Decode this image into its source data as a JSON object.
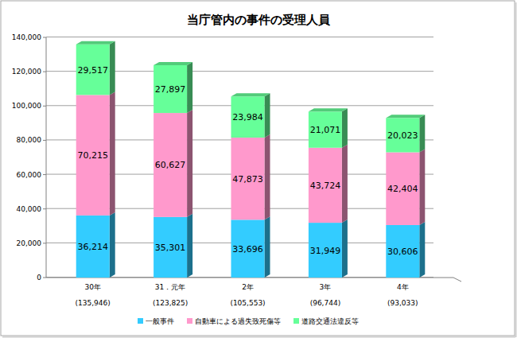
{
  "chart_data": {
    "type": "bar",
    "title": "当庁管内の事件の受理人員",
    "categories": [
      "30年",
      "31．元年",
      "2年",
      "3年",
      "4年"
    ],
    "total_labels": [
      "(135,946)",
      "(123,825)",
      "(105,553)",
      "(96,744)",
      "(93,033)"
    ],
    "series": [
      {
        "name": "一般事件",
        "color": "#33ccff",
        "values": [
          36214,
          35301,
          33696,
          31949,
          30606
        ],
        "value_labels": [
          "36,214",
          "35,301",
          "33,696",
          "31,949",
          "30,606"
        ]
      },
      {
        "name": "自動車による過失致死傷等",
        "color": "#ff99cc",
        "values": [
          70215,
          60627,
          47873,
          43724,
          42404
        ],
        "value_labels": [
          "70,215",
          "60,627",
          "47,873",
          "43,724",
          "42,404"
        ]
      },
      {
        "name": "道路交通法違反等",
        "color": "#66ff99",
        "values": [
          29517,
          27897,
          23984,
          21071,
          20023
        ],
        "value_labels": [
          "29,517",
          "27,897",
          "23,984",
          "21,071",
          "20,023"
        ]
      }
    ],
    "ylim": [
      0,
      140000
    ],
    "yticks": [
      0,
      {
        "value": 20000,
        "label": "20,000"
      },
      {
        "value": 40000,
        "label": "40,000"
      },
      {
        "value": 60000,
        "label": "60,000"
      },
      {
        "value": 80000,
        "label": "80,000"
      },
      {
        "value": 100000,
        "label": "100,000"
      },
      {
        "value": 120000,
        "label": "120,000"
      },
      {
        "value": 140000,
        "label": "140,000"
      }
    ],
    "grid": true,
    "stacked": true,
    "data_labels": true,
    "legend": "bottom"
  }
}
